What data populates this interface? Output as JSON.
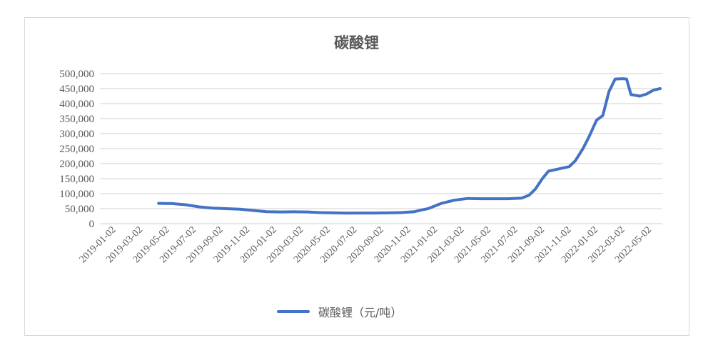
{
  "chart_data": {
    "type": "line",
    "title": "碳酸锂",
    "xlabel": "",
    "ylabel": "",
    "ylim": [
      0,
      500000
    ],
    "yticks": [
      "0",
      "50,000",
      "100,000",
      "150,000",
      "200,000",
      "250,000",
      "300,000",
      "350,000",
      "400,000",
      "450,000",
      "500,000"
    ],
    "xticks": [
      "2019-01-02",
      "2019-03-02",
      "2019-05-02",
      "2019-07-02",
      "2019-09-02",
      "2019-11-02",
      "2020-01-02",
      "2020-03-02",
      "2020-05-02",
      "2020-07-02",
      "2020-09-02",
      "2020-11-02",
      "2021-01-02",
      "2021-03-02",
      "2021-05-02",
      "2021-07-02",
      "2021-09-02",
      "2021-11-02",
      "2022-01-02",
      "2022-03-02",
      "2022-05-02"
    ],
    "grid": true,
    "legend_position": "bottom",
    "series": [
      {
        "name": "碳酸锂（元/吨）",
        "color": "#4472c4",
        "x": [
          "2019-05-15",
          "2019-06-15",
          "2019-07-15",
          "2019-08-15",
          "2019-09-15",
          "2019-10-15",
          "2019-11-15",
          "2019-12-15",
          "2020-01-15",
          "2020-02-15",
          "2020-03-15",
          "2020-04-15",
          "2020-05-15",
          "2020-06-15",
          "2020-07-15",
          "2020-08-15",
          "2020-09-15",
          "2020-10-15",
          "2020-11-15",
          "2020-12-15",
          "2021-01-01",
          "2021-01-15",
          "2021-02-15",
          "2021-03-15",
          "2021-04-15",
          "2021-05-15",
          "2021-06-15",
          "2021-07-15",
          "2021-08-15",
          "2021-09-01",
          "2021-09-15",
          "2021-10-01",
          "2021-10-15",
          "2021-11-15",
          "2021-12-01",
          "2021-12-15",
          "2022-01-01",
          "2022-01-15",
          "2022-02-01",
          "2022-02-15",
          "2022-03-01",
          "2022-03-15",
          "2022-04-01",
          "2022-04-10",
          "2022-04-20",
          "2022-05-10",
          "2022-05-25",
          "2022-06-10",
          "2022-06-25"
        ],
        "values": [
          67500,
          67000,
          63000,
          56000,
          52000,
          50000,
          48000,
          44000,
          40000,
          39000,
          39500,
          39000,
          37000,
          36000,
          35000,
          35500,
          35500,
          36000,
          37000,
          40000,
          46000,
          50000,
          68000,
          78000,
          84000,
          83000,
          83000,
          83000,
          85000,
          95000,
          115000,
          150000,
          175000,
          185000,
          190000,
          210000,
          250000,
          290000,
          345000,
          360000,
          440000,
          482000,
          483000,
          482000,
          430000,
          425000,
          432000,
          445000,
          450000
        ]
      }
    ]
  },
  "legend": {
    "label": "碳酸锂（元/吨）"
  }
}
